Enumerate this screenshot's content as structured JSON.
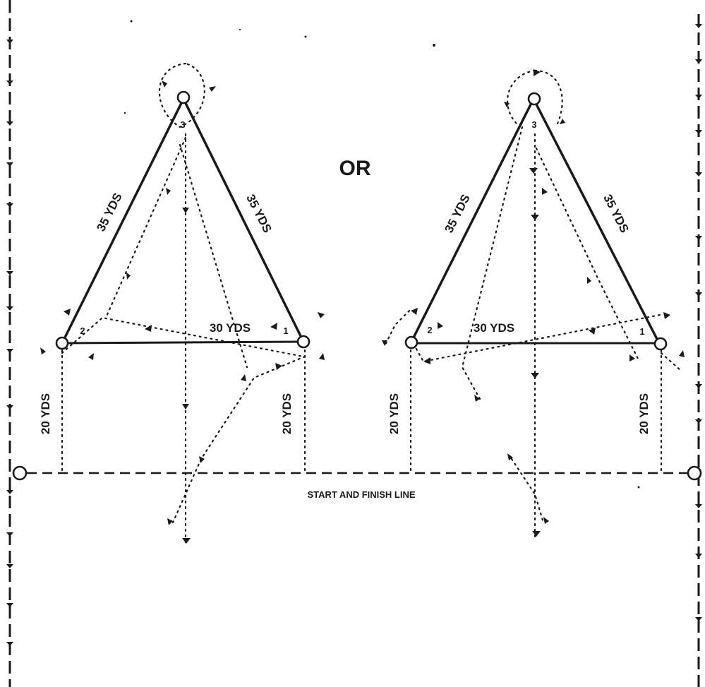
{
  "separator": "OR",
  "start_finish_label": "START AND FINISH LINE",
  "left_course": {
    "side_left": "35 YDS",
    "side_right": "35 YDS",
    "base": "30 YDS",
    "leg_left": "20 YDS",
    "leg_right": "20 YDS",
    "cone_1": "1",
    "cone_2": "2",
    "cone_3": "3"
  },
  "right_course": {
    "side_left": "35 YDS",
    "side_right": "35 YDS",
    "base": "30 YDS",
    "leg_left": "20 YDS",
    "leg_right": "20 YDS",
    "cone_1": "1",
    "cone_2": "2",
    "cone_3": "3"
  }
}
